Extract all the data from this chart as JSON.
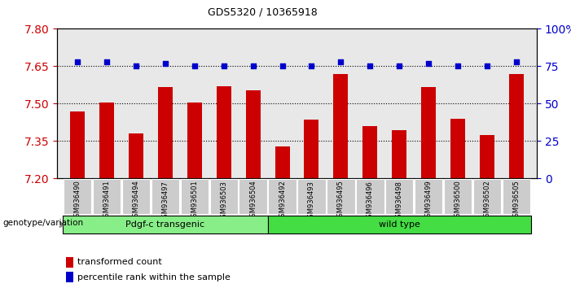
{
  "title": "GDS5320 / 10365918",
  "categories": [
    "GSM936490",
    "GSM936491",
    "GSM936494",
    "GSM936497",
    "GSM936501",
    "GSM936503",
    "GSM936504",
    "GSM936492",
    "GSM936493",
    "GSM936495",
    "GSM936496",
    "GSM936498",
    "GSM936499",
    "GSM936500",
    "GSM936502",
    "GSM936505"
  ],
  "bar_values": [
    7.47,
    7.505,
    7.38,
    7.565,
    7.505,
    7.57,
    7.555,
    7.33,
    7.435,
    7.62,
    7.41,
    7.395,
    7.565,
    7.44,
    7.375,
    7.62
  ],
  "scatter_values": [
    78,
    78,
    75,
    77,
    75,
    75,
    75,
    75,
    75,
    78,
    75,
    75,
    77,
    75,
    75,
    78
  ],
  "ylim": [
    7.2,
    7.8
  ],
  "yticks": [
    7.2,
    7.35,
    7.5,
    7.65,
    7.8
  ],
  "right_yticks": [
    0,
    25,
    50,
    75,
    100
  ],
  "right_ylim": [
    0,
    100
  ],
  "bar_color": "#cc0000",
  "scatter_color": "#0000cc",
  "group1_label": "Pdgf-c transgenic",
  "group2_label": "wild type",
  "group1_color": "#88ee88",
  "group2_color": "#44dd44",
  "n_group1": 7,
  "n_group2": 9,
  "genotype_label": "genotype/variation",
  "legend1_label": "transformed count",
  "legend2_label": "percentile rank within the sample",
  "background_color": "#ffffff",
  "plot_bg_color": "#e8e8e8",
  "tick_bg_color": "#cccccc",
  "dotted_lines": [
    7.35,
    7.5,
    7.65
  ],
  "n_bars": 16
}
